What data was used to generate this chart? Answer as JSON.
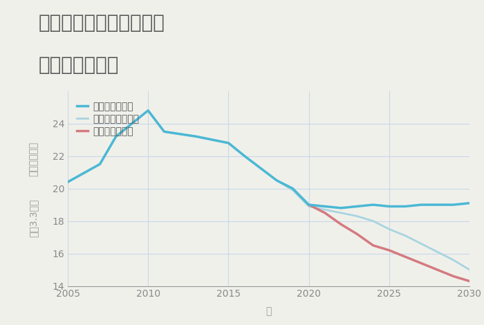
{
  "title_line1": "三重県鈴鹿市北玉垣町の",
  "title_line2": "土地の価格推移",
  "xlabel": "年",
  "ylabel_line1": "単価（万円）",
  "ylabel_line2": "坪（3.3㎡）",
  "background_color": "#f0f0eb",
  "plot_background": "#f0f0eb",
  "xlim": [
    2005,
    2030
  ],
  "ylim": [
    14,
    26
  ],
  "yticks": [
    14,
    16,
    18,
    20,
    22,
    24
  ],
  "xticks": [
    2005,
    2010,
    2015,
    2020,
    2025,
    2030
  ],
  "good_scenario": {
    "x": [
      2005,
      2007,
      2008,
      2010,
      2011,
      2013,
      2015,
      2016,
      2018,
      2019,
      2020,
      2021,
      2022,
      2023,
      2024,
      2025,
      2026,
      2027,
      2028,
      2029,
      2030
    ],
    "y": [
      20.4,
      21.5,
      23.2,
      24.8,
      23.5,
      23.2,
      22.8,
      22.0,
      20.5,
      20.0,
      19.0,
      18.9,
      18.8,
      18.9,
      19.0,
      18.9,
      18.9,
      19.0,
      19.0,
      19.0,
      19.1
    ],
    "color": "#4bb8d4",
    "linewidth": 2.5,
    "label": "グッドシナリオ"
  },
  "bad_scenario": {
    "x": [
      2020,
      2021,
      2022,
      2023,
      2024,
      2025,
      2026,
      2027,
      2028,
      2029,
      2030
    ],
    "y": [
      19.0,
      18.5,
      17.8,
      17.2,
      16.5,
      16.2,
      15.8,
      15.4,
      15.0,
      14.6,
      14.3
    ],
    "color": "#d47a80",
    "linewidth": 2.5,
    "label": "バッドシナリオ"
  },
  "normal_scenario": {
    "x": [
      2005,
      2007,
      2008,
      2010,
      2011,
      2013,
      2015,
      2016,
      2018,
      2019,
      2020,
      2021,
      2022,
      2023,
      2024,
      2025,
      2026,
      2027,
      2028,
      2029,
      2030
    ],
    "y": [
      20.4,
      21.5,
      23.2,
      24.8,
      23.5,
      23.2,
      22.8,
      22.0,
      20.5,
      19.9,
      18.9,
      18.7,
      18.5,
      18.3,
      18.0,
      17.5,
      17.1,
      16.6,
      16.1,
      15.6,
      15.0
    ],
    "color": "#a8d4e0",
    "linewidth": 2.0,
    "label": "ノーマルシナリオ"
  },
  "grid_color": "#c8d8e8",
  "title_color": "#555555",
  "axis_color": "#999999",
  "tick_color": "#888888",
  "legend_fontsize": 10,
  "title_fontsize": 20,
  "axis_label_fontsize": 10
}
